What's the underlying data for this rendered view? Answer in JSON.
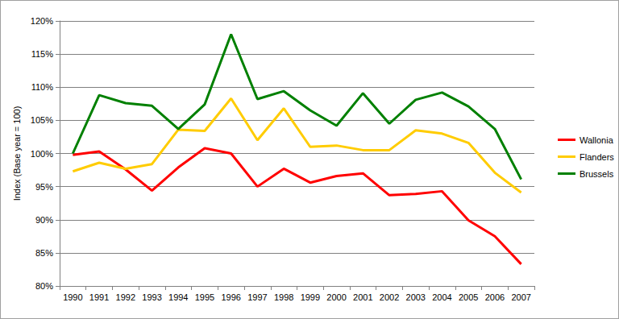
{
  "chart_data": {
    "type": "line",
    "y_label": "Index (Base year = 100)",
    "categories": [
      "1990",
      "1991",
      "1992",
      "1993",
      "1994",
      "1995",
      "1996",
      "1997",
      "1998",
      "1999",
      "2000",
      "2001",
      "2002",
      "2003",
      "2004",
      "2005",
      "2006",
      "2007"
    ],
    "series": [
      {
        "name": "Wallonia",
        "color": "#ff0000",
        "values": [
          99.8,
          100.3,
          97.6,
          94.4,
          97.9,
          100.8,
          100.0,
          95.0,
          97.7,
          95.6,
          96.6,
          97.0,
          93.7,
          93.9,
          94.3,
          89.9,
          87.5,
          83.3
        ]
      },
      {
        "name": "Flanders",
        "color": "#ffcc00",
        "values": [
          97.3,
          98.6,
          97.7,
          98.4,
          103.6,
          103.4,
          108.3,
          102.0,
          106.8,
          101.0,
          101.2,
          100.5,
          100.5,
          103.5,
          103.0,
          101.6,
          97.1,
          94.1
        ]
      },
      {
        "name": "Brussels",
        "color": "#008000",
        "values": [
          100.0,
          108.8,
          107.6,
          107.2,
          103.7,
          107.4,
          118.0,
          108.2,
          109.4,
          106.5,
          104.2,
          109.1,
          104.5,
          108.1,
          109.2,
          107.1,
          103.7,
          96.1
        ]
      }
    ],
    "ylim": [
      80,
      120
    ],
    "yticks": [
      {
        "value": 80,
        "label": "80%"
      },
      {
        "value": 85,
        "label": "85%"
      },
      {
        "value": 90,
        "label": "90%"
      },
      {
        "value": 95,
        "label": "95%"
      },
      {
        "value": 100,
        "label": "100%"
      },
      {
        "value": 105,
        "label": "105%"
      },
      {
        "value": 110,
        "label": "110%"
      },
      {
        "value": 115,
        "label": "115%"
      },
      {
        "value": 120,
        "label": "120%"
      }
    ],
    "grid": true,
    "legend": "right"
  }
}
